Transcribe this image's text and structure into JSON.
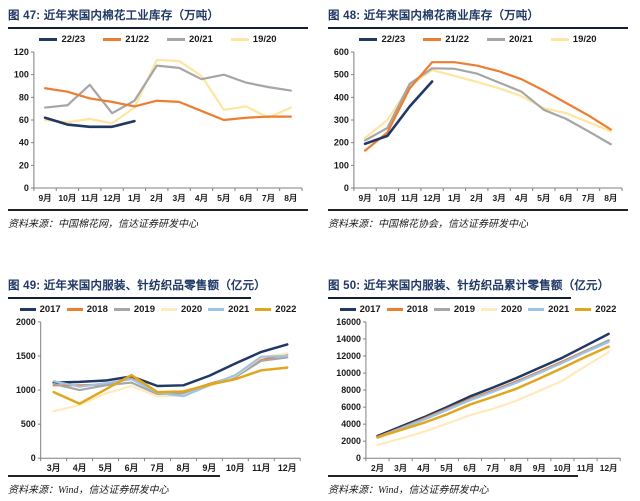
{
  "page": {
    "background": "#ffffff",
    "accent_navy": "#1f3864",
    "axis_color": "#808080",
    "tick_text_color": "#1a1a1a"
  },
  "chart_data": [
    {
      "id": "fig47",
      "title": "图 47:  近年来国内棉花工业库存（万吨）",
      "source": "资料来源：中国棉花网，信达证券研发中心",
      "type": "line",
      "grid": false,
      "legend_position": "top",
      "z_order": "reverse",
      "categories": [
        "9月",
        "10月",
        "11月",
        "12月",
        "1月",
        "2月",
        "3月",
        "4月",
        "5月",
        "6月",
        "7月",
        "8月"
      ],
      "ylim": [
        0,
        120
      ],
      "ytick": 20,
      "series": [
        {
          "name": "22/23",
          "color": "#1f3864",
          "width": 2.6,
          "values": [
            62,
            56,
            54,
            54,
            59
          ]
        },
        {
          "name": "21/22",
          "color": "#ed7d31",
          "values": [
            88,
            85,
            79,
            76,
            72,
            77,
            76,
            68,
            60,
            62,
            63,
            63
          ]
        },
        {
          "name": "20/21",
          "color": "#a6a6a6",
          "values": [
            71,
            73,
            91,
            66,
            77,
            108,
            106,
            96,
            100,
            93,
            89,
            86
          ]
        },
        {
          "name": "19/20",
          "color": "#ffe5a0",
          "values": [
            60,
            58,
            61,
            57,
            71,
            113,
            112,
            99,
            69,
            72,
            62,
            71
          ]
        }
      ]
    },
    {
      "id": "fig48",
      "title": "图 48:  近年来国内棉花商业库存（万吨）",
      "source": "资料来源：中国棉花协会，信达证券研发中心",
      "type": "line",
      "grid": false,
      "legend_position": "top",
      "z_order": "reverse",
      "categories": [
        "9月",
        "10月",
        "11月",
        "12月",
        "1月",
        "2月",
        "3月",
        "4月",
        "5月",
        "6月",
        "7月",
        "8月"
      ],
      "ylim": [
        0,
        600
      ],
      "ytick": 100,
      "series": [
        {
          "name": "22/23",
          "color": "#1f3864",
          "width": 2.6,
          "values": [
            195,
            230,
            360,
            470
          ]
        },
        {
          "name": "21/22",
          "color": "#ed7d31",
          "values": [
            165,
            245,
            440,
            555,
            555,
            540,
            515,
            480,
            430,
            375,
            320,
            258
          ]
        },
        {
          "name": "20/21",
          "color": "#a6a6a6",
          "values": [
            210,
            265,
            460,
            528,
            526,
            505,
            465,
            425,
            345,
            305,
            250,
            193
          ]
        },
        {
          "name": "19/20",
          "color": "#ffe5a0",
          "values": [
            220,
            300,
            450,
            520,
            495,
            468,
            440,
            405,
            352,
            330,
            290,
            250
          ]
        }
      ]
    },
    {
      "id": "fig49",
      "title": "图 49:  近年来国内服装、针纺织品零售额（亿元）",
      "source": "资料来源：Wind，信达证券研发中心",
      "type": "line",
      "grid": false,
      "legend_position": "top",
      "z_order": "normal",
      "categories": [
        "3月",
        "4月",
        "5月",
        "6月",
        "7月",
        "8月",
        "9月",
        "10月",
        "11月",
        "12月"
      ],
      "ylim": [
        0,
        2000
      ],
      "ytick": 500,
      "series": [
        {
          "name": "2017",
          "color": "#1f3864",
          "width": 2.5,
          "values": [
            1110,
            1120,
            1140,
            1200,
            1060,
            1070,
            1210,
            1390,
            1560,
            1670
          ]
        },
        {
          "name": "2018",
          "color": "#ed7d31",
          "values": [
            1070,
            1070,
            1080,
            1170,
            960,
            970,
            1090,
            1200,
            1440,
            1530
          ]
        },
        {
          "name": "2019",
          "color": "#a6a6a6",
          "values": [
            1090,
            1000,
            1070,
            1110,
            940,
            950,
            1080,
            1190,
            1430,
            1480
          ]
        },
        {
          "name": "2020",
          "color": "#ffeabb",
          "values": [
            690,
            780,
            950,
            1060,
            910,
            920,
            1060,
            1210,
            1480,
            1540
          ]
        },
        {
          "name": "2021",
          "color": "#9dc3e6",
          "values": [
            1130,
            1050,
            1100,
            1160,
            960,
            910,
            1070,
            1220,
            1490,
            1500
          ]
        },
        {
          "name": "2022",
          "color": "#e0a61c",
          "width": 2.5,
          "values": [
            970,
            800,
            1010,
            1220,
            970,
            980,
            1080,
            1160,
            1290,
            1330
          ]
        }
      ]
    },
    {
      "id": "fig50",
      "title": "图 50:  近年来国内服装、针纺织品累计零售额（亿元）",
      "source": "资料来源：Wind，信达证券研发中心",
      "type": "line",
      "grid": false,
      "legend_position": "top",
      "z_order": "normal",
      "categories": [
        "2月",
        "3月",
        "4月",
        "5月",
        "6月",
        "7月",
        "8月",
        "9月",
        "10月",
        "11月",
        "12月"
      ],
      "ylim": [
        0,
        16000
      ],
      "ytick": 2000,
      "series": [
        {
          "name": "2017",
          "color": "#1f3864",
          "width": 2.5,
          "values": [
            2600,
            3700,
            4800,
            6000,
            7250,
            8300,
            9400,
            10600,
            11800,
            13200,
            14600
          ]
        },
        {
          "name": "2018",
          "color": "#ed7d31",
          "values": [
            2500,
            3550,
            4650,
            5800,
            6950,
            7950,
            9000,
            10150,
            11350,
            12600,
            13800
          ]
        },
        {
          "name": "2019",
          "color": "#a6a6a6",
          "values": [
            2450,
            3500,
            4550,
            5700,
            6850,
            7850,
            8900,
            10050,
            11250,
            12550,
            13850
          ]
        },
        {
          "name": "2020",
          "color": "#ffeabb",
          "values": [
            1550,
            2300,
            3100,
            4050,
            5050,
            5800,
            6750,
            7900,
            9100,
            10800,
            12450
          ]
        },
        {
          "name": "2021",
          "color": "#9dc3e6",
          "values": [
            2400,
            3450,
            4500,
            5650,
            6800,
            7800,
            8850,
            10000,
            11200,
            12450,
            13650
          ]
        },
        {
          "name": "2022",
          "color": "#e0a61c",
          "width": 2.5,
          "values": [
            2450,
            3300,
            4150,
            5150,
            6300,
            7200,
            8150,
            9350,
            10600,
            11900,
            13100
          ]
        }
      ]
    }
  ]
}
